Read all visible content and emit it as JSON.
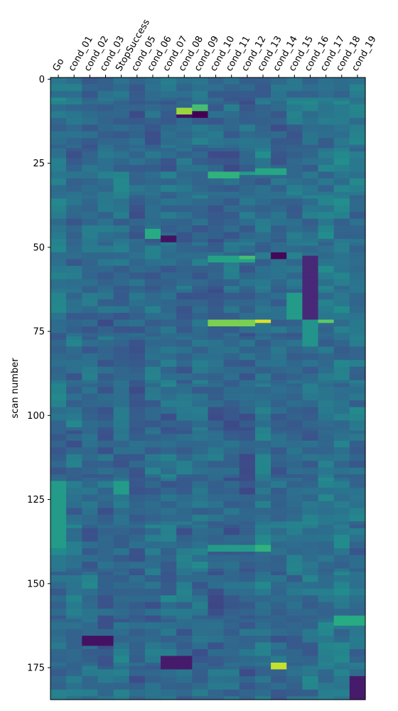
{
  "chart_data": {
    "type": "heatmap",
    "title": "",
    "xlabel": "",
    "ylabel": "scan number",
    "colormap": "viridis",
    "x_tick_position": "top",
    "x_tick_rotation": "60deg",
    "columns": [
      "Go",
      "cond_01",
      "cond_02",
      "cond_03",
      "StopSuccess",
      "cond_05",
      "cond_06",
      "cond_07",
      "cond_08",
      "cond_09",
      "cond_10",
      "cond_11",
      "cond_12",
      "cond_13",
      "cond_14",
      "cond_15",
      "cond_16",
      "cond_17",
      "cond_18",
      "cond_19"
    ],
    "row_range": [
      0,
      185
    ],
    "y_ticks": [
      0,
      25,
      50,
      75,
      100,
      125,
      150,
      175
    ],
    "grid": false,
    "legend": "none",
    "value_range": [
      0,
      1
    ],
    "background_values": [
      0.38,
      0.36,
      0.35,
      0.34,
      0.37,
      0.33,
      0.35,
      0.36,
      0.34,
      0.36,
      0.33,
      0.33,
      0.33,
      0.38,
      0.34,
      0.35,
      0.37,
      0.4,
      0.4,
      0.38
    ],
    "notable_blocks": [
      {
        "columns": [
          8
        ],
        "rows": [
          9,
          11
        ],
        "value": 0.85
      },
      {
        "columns": [
          9
        ],
        "rows": [
          8,
          10
        ],
        "value": 0.7
      },
      {
        "columns": [
          9
        ],
        "rows": [
          10,
          12
        ],
        "value": 0.0
      },
      {
        "columns": [
          8
        ],
        "rows": [
          11,
          12
        ],
        "value": 0.05
      },
      {
        "columns": [
          10,
          11
        ],
        "rows": [
          28,
          30
        ],
        "value": 0.65
      },
      {
        "columns": [
          12
        ],
        "rows": [
          28,
          29
        ],
        "value": 0.55
      },
      {
        "columns": [
          13,
          14
        ],
        "rows": [
          27,
          29
        ],
        "value": 0.6
      },
      {
        "columns": [
          10,
          11,
          12
        ],
        "rows": [
          53,
          55
        ],
        "value": 0.58
      },
      {
        "columns": [
          12
        ],
        "rows": [
          53,
          54
        ],
        "value": 0.7
      },
      {
        "columns": [
          14
        ],
        "rows": [
          52,
          54
        ],
        "value": 0.02
      },
      {
        "columns": [
          10,
          11,
          12
        ],
        "rows": [
          72,
          74
        ],
        "value": 0.8
      },
      {
        "columns": [
          13
        ],
        "rows": [
          72,
          73
        ],
        "value": 0.95
      },
      {
        "columns": [
          17
        ],
        "rows": [
          72,
          73
        ],
        "value": 0.75
      },
      {
        "columns": [
          10,
          11,
          12
        ],
        "rows": [
          139,
          141
        ],
        "value": 0.55
      },
      {
        "columns": [
          13
        ],
        "rows": [
          139,
          141
        ],
        "value": 0.65
      },
      {
        "columns": [
          14
        ],
        "rows": [
          174,
          176
        ],
        "value": 0.92
      },
      {
        "columns": [
          16
        ],
        "rows": [
          53,
          72
        ],
        "value": 0.12
      },
      {
        "columns": [
          15
        ],
        "rows": [
          64,
          72
        ],
        "value": 0.55
      },
      {
        "columns": [
          16
        ],
        "rows": [
          72,
          80
        ],
        "value": 0.52
      },
      {
        "columns": [
          19
        ],
        "rows": [
          178,
          185
        ],
        "value": 0.08
      },
      {
        "columns": [
          2,
          3
        ],
        "rows": [
          166,
          169
        ],
        "value": 0.05
      },
      {
        "columns": [
          6
        ],
        "rows": [
          45,
          48
        ],
        "value": 0.62
      },
      {
        "columns": [
          7
        ],
        "rows": [
          47,
          49
        ],
        "value": 0.05
      },
      {
        "columns": [
          7,
          8
        ],
        "rows": [
          172,
          176
        ],
        "value": 0.08
      },
      {
        "columns": [
          18,
          19
        ],
        "rows": [
          160,
          163
        ],
        "value": 0.62
      },
      {
        "columns": [
          0
        ],
        "rows": [
          120,
          140
        ],
        "value": 0.55
      },
      {
        "columns": [
          4
        ],
        "rows": [
          120,
          124
        ],
        "value": 0.55
      }
    ]
  }
}
